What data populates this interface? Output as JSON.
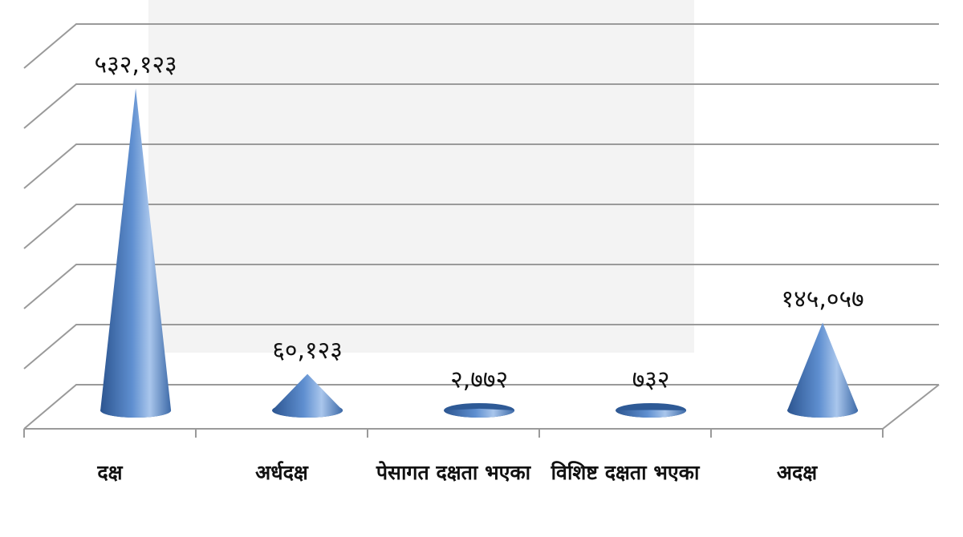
{
  "chart_data": {
    "type": "cone3d",
    "categories": [
      "दक्ष",
      "अर्धदक्ष",
      "पेसागत दक्षता भएका",
      "विशिष्ट दक्षता भएका",
      "अदक्ष"
    ],
    "values": [
      532123,
      60123,
      2772,
      732,
      145057
    ],
    "value_labels": [
      "५३२,१२३",
      "६०,१२३",
      "२,७७२",
      "७३२",
      "१४५,०५७"
    ],
    "color": "#4a7bc0",
    "ylim": [
      0,
      600000
    ],
    "yticks": [
      0,
      100000,
      200000,
      300000,
      400000,
      500000,
      600000
    ],
    "grid": true
  }
}
